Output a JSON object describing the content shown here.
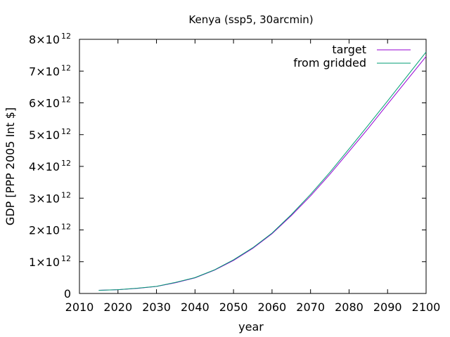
{
  "chart_data": {
    "type": "line",
    "title": "Kenya (ssp5, 30arcmin)",
    "xlabel": "year",
    "ylabel": "GDP [PPP 2005 Int $]",
    "xlim": [
      2010,
      2100
    ],
    "ylim": [
      0,
      8000000000000.0
    ],
    "xticks": [
      2010,
      2020,
      2030,
      2040,
      2050,
      2060,
      2070,
      2080,
      2090,
      2100
    ],
    "yticks": [
      {
        "value": 0,
        "label": "0",
        "exp": ""
      },
      {
        "value": 1000000000000.0,
        "label": "1×10",
        "exp": "12"
      },
      {
        "value": 2000000000000.0,
        "label": "2×10",
        "exp": "12"
      },
      {
        "value": 3000000000000.0,
        "label": "3×10",
        "exp": "12"
      },
      {
        "value": 4000000000000.0,
        "label": "4×10",
        "exp": "12"
      },
      {
        "value": 5000000000000.0,
        "label": "5×10",
        "exp": "12"
      },
      {
        "value": 6000000000000.0,
        "label": "6×10",
        "exp": "12"
      },
      {
        "value": 7000000000000.0,
        "label": "7×10",
        "exp": "12"
      },
      {
        "value": 8000000000000.0,
        "label": "8×10",
        "exp": "12"
      }
    ],
    "grid": false,
    "legend_position": "top-right",
    "x": [
      2015,
      2020,
      2025,
      2030,
      2035,
      2040,
      2045,
      2050,
      2055,
      2060,
      2065,
      2070,
      2075,
      2080,
      2085,
      2090,
      2095,
      2100
    ],
    "series": [
      {
        "name": "target",
        "color": "#9400d3",
        "values": [
          100000000000.0,
          120000000000.0,
          160000000000.0,
          220000000000.0,
          340000000000.0,
          490000000000.0,
          730000000000.0,
          1040000000000.0,
          1420000000000.0,
          1880000000000.0,
          2450000000000.0,
          3070000000000.0,
          3750000000000.0,
          4470000000000.0,
          5200000000000.0,
          5960000000000.0,
          6710000000000.0,
          7460000000000.0
        ]
      },
      {
        "name": "from gridded",
        "color": "#009e73",
        "values": [
          100000000000.0,
          120000000000.0,
          165000000000.0,
          225000000000.0,
          350000000000.0,
          500000000000.0,
          740000000000.0,
          1060000000000.0,
          1440000000000.0,
          1900000000000.0,
          2480000000000.0,
          3120000000000.0,
          3810000000000.0,
          4550000000000.0,
          5300000000000.0,
          6060000000000.0,
          6830000000000.0,
          7600000000000.0
        ]
      }
    ]
  }
}
